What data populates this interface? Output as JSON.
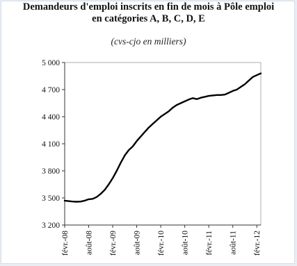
{
  "chart_data": {
    "type": "line",
    "title_line1": "Demandeurs d'emploi inscrits en fin de mois à Pôle emploi",
    "title_line2": "en catégories A, B, C, D, E",
    "subtitle": "(cvs-cjo en milliers)",
    "xlabel": "",
    "ylabel": "",
    "ylim": [
      3200,
      5000
    ],
    "yticks": [
      3200,
      3500,
      3800,
      4100,
      4400,
      4700,
      5000
    ],
    "ytick_labels": [
      "3 200",
      "3 500",
      "3 800",
      "4 100",
      "4 400",
      "4 700",
      "5 000"
    ],
    "xticks": [
      {
        "index": 0,
        "label": "févr.-08"
      },
      {
        "index": 6,
        "label": "août-08"
      },
      {
        "index": 12,
        "label": "févr.-09"
      },
      {
        "index": 18,
        "label": "août-09"
      },
      {
        "index": 24,
        "label": "févr.-10"
      },
      {
        "index": 30,
        "label": "août-10"
      },
      {
        "index": 36,
        "label": "févr.-11"
      },
      {
        "index": 42,
        "label": "août-11"
      },
      {
        "index": 48,
        "label": "févr.-12"
      }
    ],
    "grid": false,
    "line_color": "#000000",
    "series": [
      {
        "values": [
          3470,
          3465,
          3460,
          3458,
          3460,
          3470,
          3485,
          3490,
          3510,
          3545,
          3590,
          3650,
          3720,
          3800,
          3890,
          3970,
          4030,
          4070,
          4130,
          4180,
          4230,
          4280,
          4320,
          4360,
          4400,
          4430,
          4460,
          4500,
          4530,
          4550,
          4570,
          4590,
          4605,
          4595,
          4610,
          4620,
          4630,
          4635,
          4640,
          4640,
          4645,
          4665,
          4685,
          4700,
          4730,
          4760,
          4800,
          4840,
          4860,
          4880
        ]
      }
    ]
  }
}
